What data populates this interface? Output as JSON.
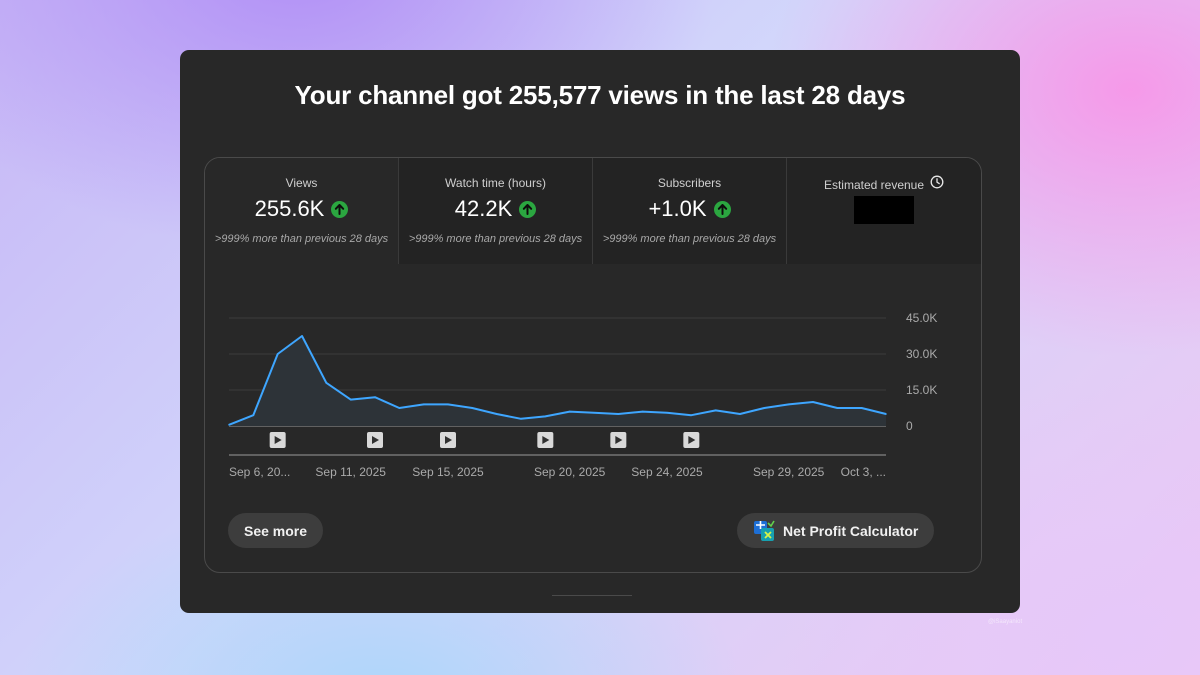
{
  "headline": "Your channel got 255,577 views in the last 28 days",
  "metrics": [
    {
      "label": "Views",
      "value": "255.6K",
      "compare": ">999% more than previous 28 days"
    },
    {
      "label": "Watch time (hours)",
      "value": "42.2K",
      "compare": ">999% more than previous 28 days"
    },
    {
      "label": "Subscribers",
      "value": "+1.0K",
      "compare": ">999% more than previous 28 days"
    },
    {
      "label": "Estimated revenue",
      "icon": "clock-icon"
    }
  ],
  "chart_data": {
    "type": "area",
    "series": [
      {
        "values": [
          500,
          4500,
          30000,
          37500,
          18000,
          11000,
          12000,
          7500,
          9000,
          9000,
          7500,
          5000,
          3000,
          4000,
          6000,
          5500,
          5000,
          6000,
          5500,
          4500,
          6500,
          5000,
          7500,
          9000,
          10000,
          7500,
          7500,
          5000
        ]
      }
    ],
    "x_tick_labels": [
      "Sep 6, 20...",
      "Sep 11, 2025",
      "Sep 15, 2025",
      "Sep 20, 2025",
      "Sep 24, 2025",
      "Sep 29, 2025",
      "Oct 3, ..."
    ],
    "x_tick_indices": [
      0,
      5,
      9,
      14,
      18,
      23,
      27
    ],
    "y_tick_labels": [
      "45.0K",
      "30.0K",
      "15.0K",
      "0"
    ],
    "y_ticks": [
      45000,
      30000,
      15000,
      0
    ],
    "ylim": [
      0,
      45000
    ],
    "video_markers": [
      2,
      6,
      9,
      13,
      16,
      19
    ],
    "line_color": "#3ea6ff",
    "fill_color": "#2d3338",
    "grid": true
  },
  "buttons": {
    "see_more": "See more",
    "net_profit": "Net Profit Calculator"
  },
  "watermark": "@iSaayaniot"
}
